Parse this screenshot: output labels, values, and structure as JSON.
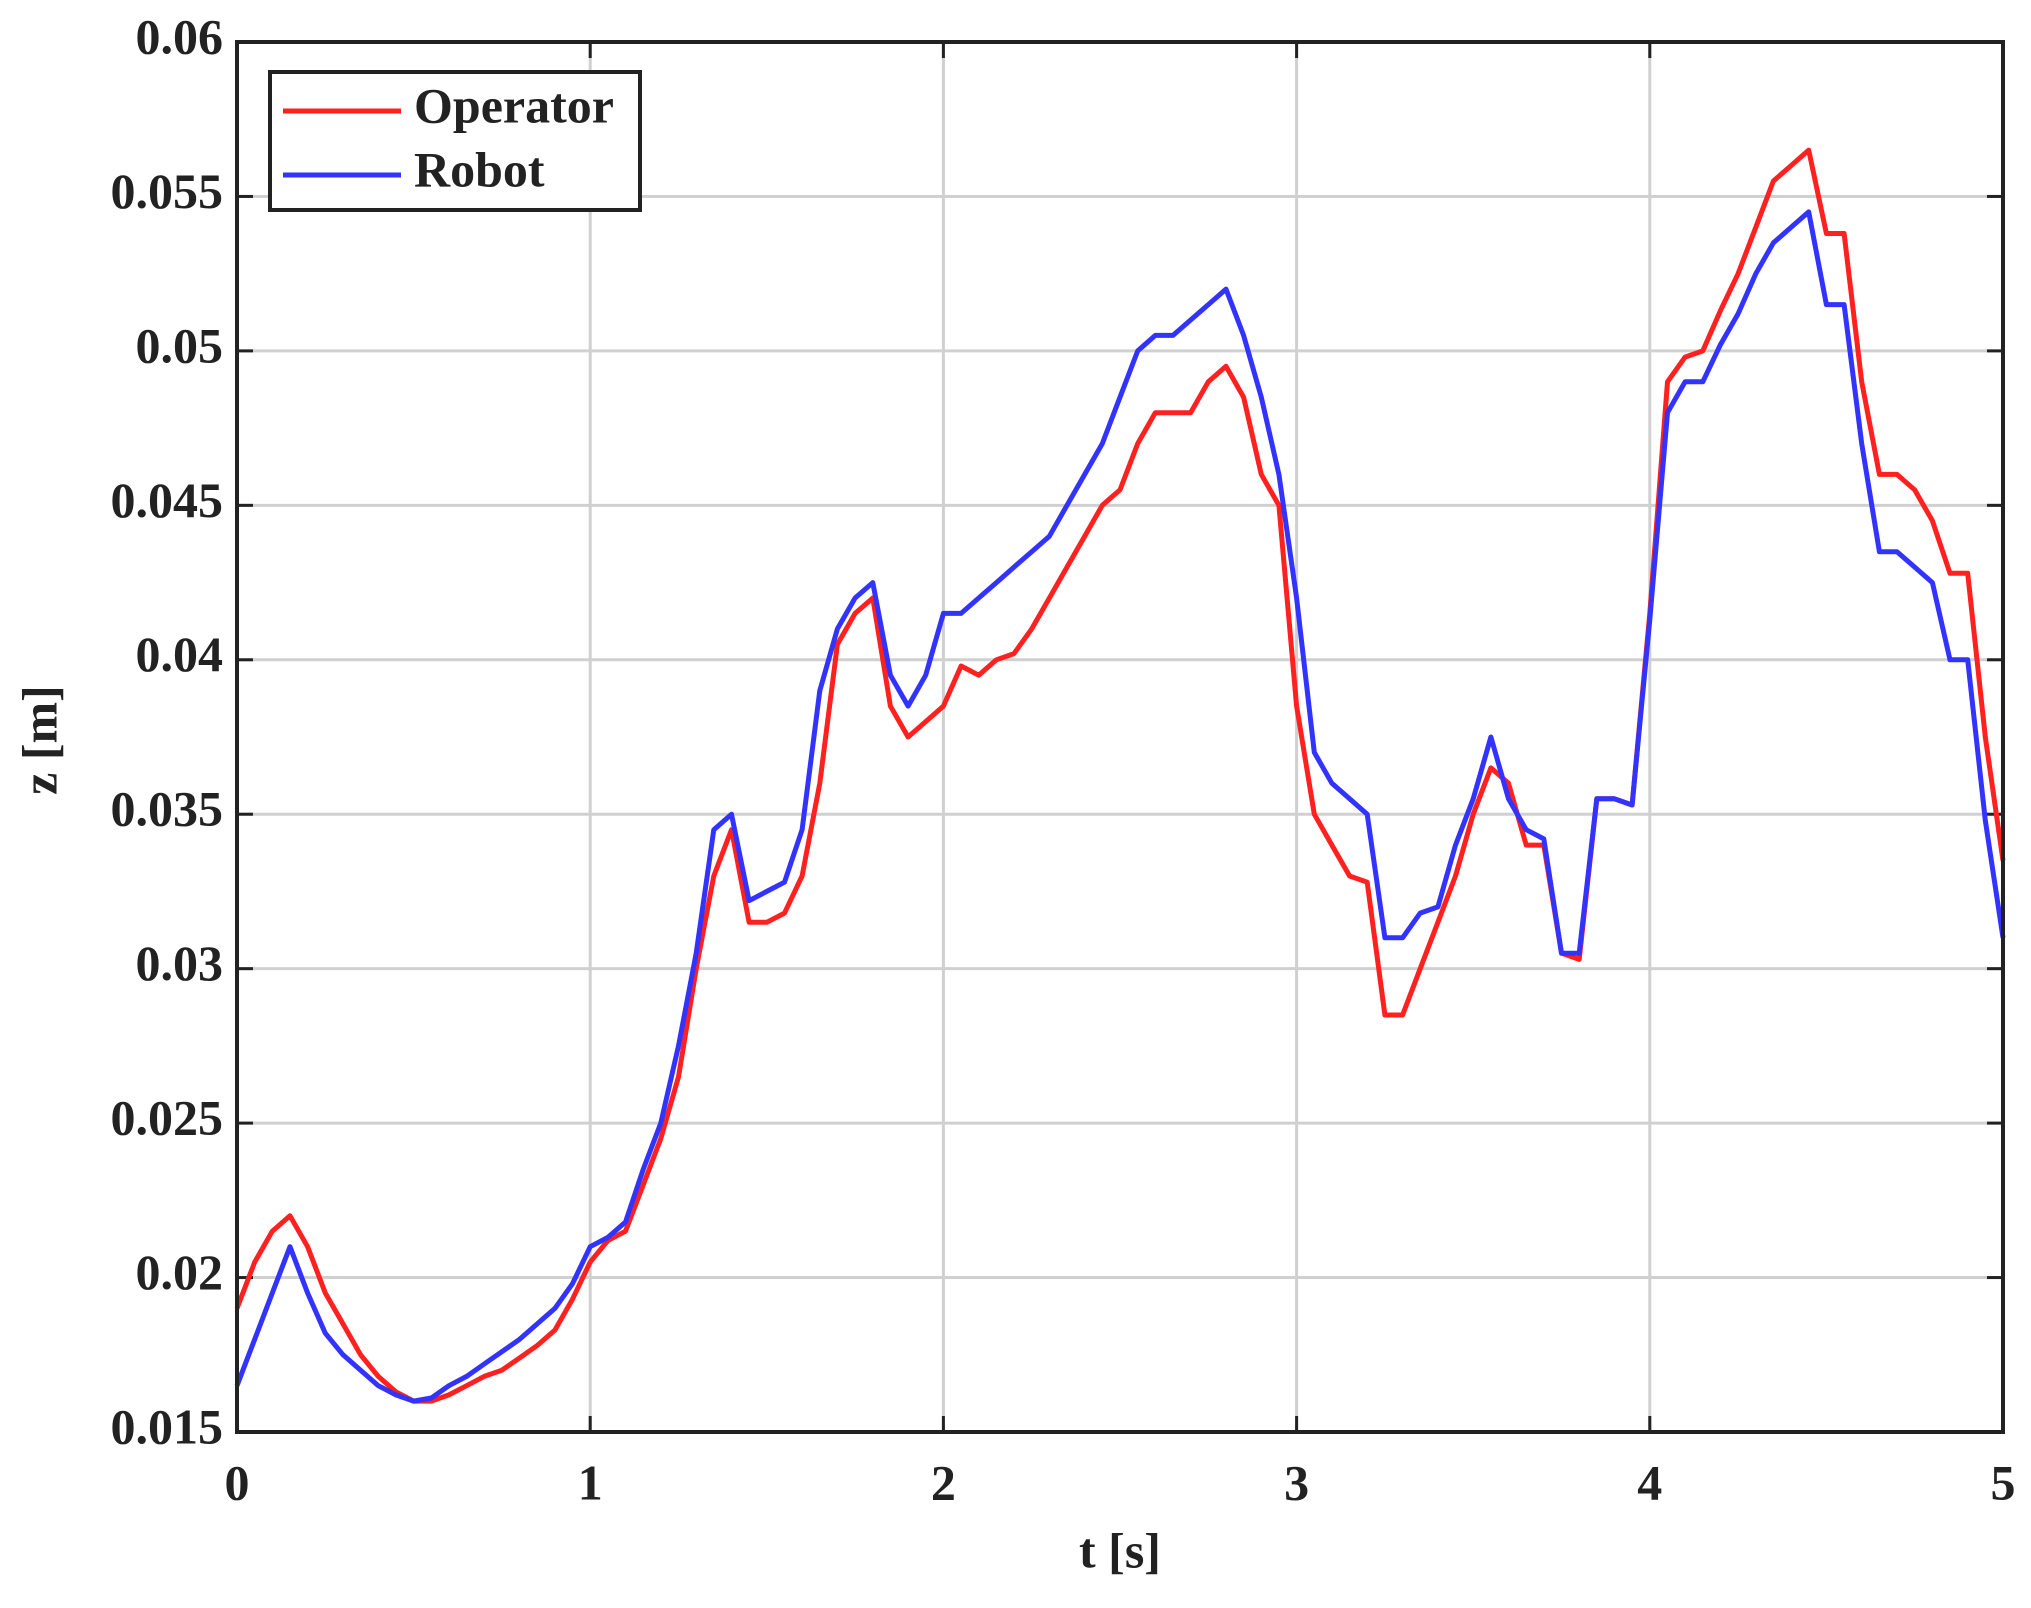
{
  "chart_data": {
    "type": "line",
    "xlabel": "t [s]",
    "ylabel": "z [m]",
    "x": [
      0,
      0.05,
      0.1,
      0.15,
      0.2,
      0.25,
      0.3,
      0.35,
      0.4,
      0.45,
      0.5,
      0.55,
      0.6,
      0.65,
      0.7,
      0.75,
      0.8,
      0.85,
      0.9,
      0.95,
      1,
      1.05,
      1.1,
      1.15,
      1.2,
      1.25,
      1.3,
      1.35,
      1.4,
      1.45,
      1.5,
      1.55,
      1.6,
      1.65,
      1.7,
      1.75,
      1.8,
      1.85,
      1.9,
      1.95,
      2,
      2.05,
      2.1,
      2.15,
      2.2,
      2.25,
      2.3,
      2.35,
      2.4,
      2.45,
      2.5,
      2.55,
      2.6,
      2.65,
      2.7,
      2.75,
      2.8,
      2.85,
      2.9,
      2.95,
      3,
      3.05,
      3.1,
      3.15,
      3.2,
      3.25,
      3.3,
      3.35,
      3.4,
      3.45,
      3.5,
      3.55,
      3.6,
      3.65,
      3.7,
      3.75,
      3.8,
      3.85,
      3.9,
      3.95,
      4,
      4.05,
      4.1,
      4.15,
      4.2,
      4.25,
      4.3,
      4.35,
      4.4,
      4.45,
      4.5,
      4.55,
      4.6,
      4.65,
      4.7,
      4.75,
      4.8,
      4.85,
      4.9,
      4.95,
      5
    ],
    "series": [
      {
        "name": "Operator",
        "color": "#ff2020",
        "values": [
          0.019,
          0.0205,
          0.0215,
          0.022,
          0.021,
          0.0195,
          0.0185,
          0.0175,
          0.0168,
          0.0163,
          0.016,
          0.016,
          0.0162,
          0.0165,
          0.0168,
          0.017,
          0.0174,
          0.0178,
          0.0183,
          0.0193,
          0.0205,
          0.0212,
          0.0215,
          0.023,
          0.0245,
          0.0265,
          0.03,
          0.033,
          0.0345,
          0.0315,
          0.0315,
          0.0318,
          0.033,
          0.036,
          0.0405,
          0.0415,
          0.042,
          0.0385,
          0.0375,
          0.038,
          0.0385,
          0.0398,
          0.0395,
          0.04,
          0.0402,
          0.041,
          0.042,
          0.043,
          0.044,
          0.045,
          0.0455,
          0.047,
          0.048,
          0.048,
          0.048,
          0.049,
          0.0495,
          0.0485,
          0.046,
          0.045,
          0.0385,
          0.035,
          0.034,
          0.033,
          0.0328,
          0.0285,
          0.0285,
          0.03,
          0.0315,
          0.033,
          0.035,
          0.0365,
          0.036,
          0.034,
          0.034,
          0.0305,
          0.0303,
          0.0355,
          0.0355,
          0.0353,
          0.0415,
          0.049,
          0.0498,
          0.05,
          0.0513,
          0.0525,
          0.054,
          0.0555,
          0.056,
          0.0565,
          0.0538,
          0.0538,
          0.049,
          0.046,
          0.046,
          0.0455,
          0.0445,
          0.0428,
          0.0428,
          0.0375,
          0.0335
        ]
      },
      {
        "name": "Robot",
        "color": "#3333ff",
        "values": [
          0.0165,
          0.018,
          0.0195,
          0.021,
          0.0195,
          0.0182,
          0.0175,
          0.017,
          0.0165,
          0.0162,
          0.016,
          0.0161,
          0.0165,
          0.0168,
          0.0172,
          0.0176,
          0.018,
          0.0185,
          0.019,
          0.0198,
          0.021,
          0.0213,
          0.0218,
          0.0235,
          0.025,
          0.0275,
          0.0305,
          0.0345,
          0.035,
          0.0322,
          0.0325,
          0.0328,
          0.0345,
          0.039,
          0.041,
          0.042,
          0.0425,
          0.0395,
          0.0385,
          0.0395,
          0.0415,
          0.0415,
          0.042,
          0.0425,
          0.043,
          0.0435,
          0.044,
          0.045,
          0.046,
          0.047,
          0.0485,
          0.05,
          0.0505,
          0.0505,
          0.051,
          0.0515,
          0.052,
          0.0505,
          0.0485,
          0.046,
          0.042,
          0.037,
          0.036,
          0.0355,
          0.035,
          0.031,
          0.031,
          0.0318,
          0.032,
          0.034,
          0.0355,
          0.0375,
          0.0355,
          0.0345,
          0.0342,
          0.0305,
          0.0305,
          0.0355,
          0.0355,
          0.0353,
          0.0413,
          0.048,
          0.049,
          0.049,
          0.0502,
          0.0512,
          0.0525,
          0.0535,
          0.054,
          0.0545,
          0.0515,
          0.0515,
          0.047,
          0.0435,
          0.0435,
          0.043,
          0.0425,
          0.04,
          0.04,
          0.0348,
          0.031
        ]
      }
    ],
    "xlim": [
      0,
      5
    ],
    "xticks": [
      0,
      1,
      2,
      3,
      4,
      5
    ],
    "ylim": [
      0.015,
      0.06
    ],
    "yticks": [
      0.015,
      0.02,
      0.025,
      0.03,
      0.035,
      0.04,
      0.045,
      0.05,
      0.055,
      0.06
    ],
    "grid": true,
    "legend": "upper left"
  }
}
